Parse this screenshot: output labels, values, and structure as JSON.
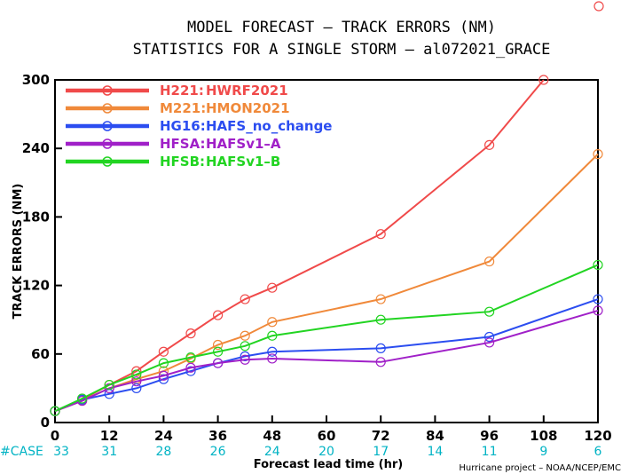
{
  "chart_data": {
    "type": "line",
    "title": "MODEL FORECAST – TRACK ERRORS (NM)",
    "subtitle": "STATISTICS FOR A SINGLE STORM – al072021_GRACE",
    "xlabel": "Forecast lead time (hr)",
    "ylabel": "TRACK ERRORS (NM)",
    "x_ticks": [
      "0",
      "12",
      "24",
      "36",
      "48",
      "60",
      "72",
      "84",
      "96",
      "108",
      "120"
    ],
    "y_ticks": [
      "0",
      "60",
      "120",
      "180",
      "240",
      "300"
    ],
    "xlim": [
      0,
      120
    ],
    "ylim": [
      0,
      300
    ],
    "grid": false,
    "legend_position": "top-left",
    "case_label": "#CASE",
    "case_counts": [
      "33",
      "31",
      "28",
      "26",
      "24",
      "20",
      "17",
      "14",
      "11",
      "9",
      "6"
    ],
    "credit": "Hurricane project – NOAA/NCEP/EMC",
    "series": [
      {
        "name": "H221:",
        "desc": "HWRF2021",
        "color": "#f04a4a",
        "x": [
          0,
          6,
          12,
          18,
          24,
          30,
          36,
          42,
          48,
          72,
          96,
          108
        ],
        "y": [
          10,
          20,
          33,
          45,
          62,
          78,
          94,
          108,
          118,
          165,
          243,
          300
        ]
      },
      {
        "name": "M221:",
        "desc": "HMON2021",
        "color": "#f0893a",
        "x": [
          0,
          6,
          12,
          18,
          24,
          30,
          36,
          42,
          48,
          72,
          96,
          120
        ],
        "y": [
          10,
          19,
          30,
          38,
          45,
          56,
          68,
          76,
          88,
          108,
          141,
          235
        ]
      },
      {
        "name": "HG16:",
        "desc": "HAFS_no_change",
        "color": "#2b4df0",
        "x": [
          0,
          6,
          12,
          18,
          24,
          30,
          36,
          42,
          48,
          72,
          96,
          120
        ],
        "y": [
          10,
          20,
          25,
          30,
          38,
          45,
          52,
          58,
          62,
          65,
          75,
          108
        ]
      },
      {
        "name": "HFSA:",
        "desc": "HAFSv1–A",
        "color": "#a020c8",
        "x": [
          0,
          6,
          12,
          18,
          24,
          30,
          36,
          42,
          48,
          72,
          96,
          120
        ],
        "y": [
          10,
          19,
          30,
          36,
          41,
          48,
          52,
          55,
          56,
          53,
          70,
          98
        ]
      },
      {
        "name": "HFSB:",
        "desc": "HAFSv1–B",
        "color": "#22d422",
        "x": [
          0,
          6,
          12,
          18,
          24,
          30,
          36,
          42,
          48,
          72,
          96,
          120
        ],
        "y": [
          10,
          21,
          33,
          42,
          52,
          57,
          62,
          67,
          76,
          90,
          97,
          138
        ]
      }
    ]
  }
}
